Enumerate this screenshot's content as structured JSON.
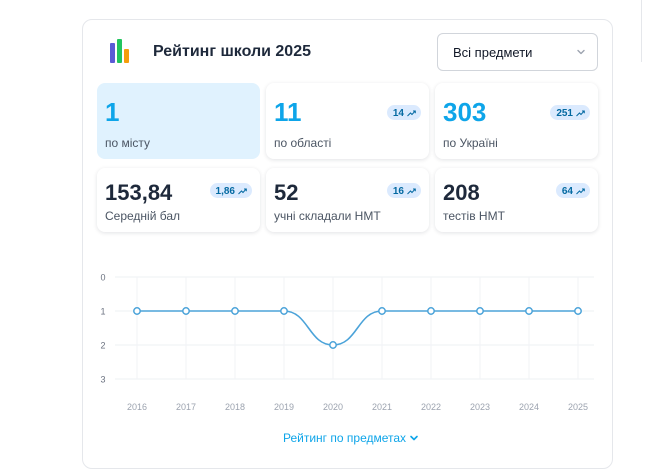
{
  "header": {
    "title": "Рейтинг школи 2025",
    "logo_icon": "bar-chart-logo-icon",
    "logo_colors": [
      "#5b5bd6",
      "#22c55e",
      "#f59e0b"
    ]
  },
  "subject_select": {
    "value": "Всі предмети",
    "icon": "chevron-down-icon"
  },
  "stats": [
    {
      "value": "1",
      "label": "по місту",
      "badge": null
    },
    {
      "value": "11",
      "label": "по області",
      "badge": "14"
    },
    {
      "value": "303",
      "label": "по Україні",
      "badge": "251"
    },
    {
      "value": "153,84",
      "label": "Середній бал",
      "badge": "1,86"
    },
    {
      "value": "52",
      "label": "учні складали НМТ",
      "badge": "16"
    },
    {
      "value": "208",
      "label": "тестів НМТ",
      "badge": "64"
    }
  ],
  "colors": {
    "accent": "#0ea5e9",
    "active_tile": "#e0f2fe",
    "badge_bg": "#dbeafe",
    "line": "#4ba3d9"
  },
  "chart_data": {
    "type": "line",
    "x": [
      "2016",
      "2017",
      "2018",
      "2019",
      "2020",
      "2021",
      "2022",
      "2023",
      "2024",
      "2025"
    ],
    "series": [
      {
        "values": [
          1,
          1,
          1,
          1,
          2,
          1,
          1,
          1,
          1,
          1
        ]
      }
    ],
    "y_ticks": [
      "0",
      "1",
      "2",
      "3"
    ],
    "ylim": [
      0,
      3
    ],
    "y_inverted": true,
    "grid": true,
    "title": "",
    "xlabel": "",
    "ylabel": ""
  },
  "footer": {
    "link_label": "Рейтинг по предметах",
    "icon": "chevron-down-icon"
  }
}
